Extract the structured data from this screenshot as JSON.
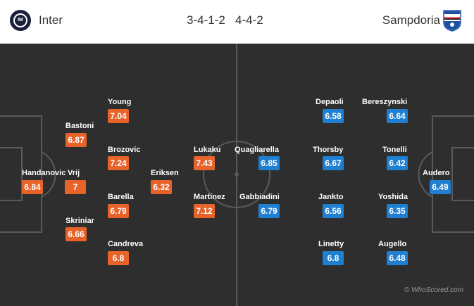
{
  "header": {
    "home_team": "Inter",
    "away_team": "Sampdoria",
    "home_formation": "3-4-1-2",
    "away_formation": "4-4-2",
    "home_crest_text": "IM"
  },
  "colors": {
    "home_rating": "#e8632a",
    "away_rating": "#1f7fd1",
    "pitch": "#2e2e2e",
    "lines": "#5a5a5a"
  },
  "home_players": [
    {
      "name": "Young",
      "rating": "7.04"
    },
    {
      "name": "Bastoni",
      "rating": "6.87"
    },
    {
      "name": "Brozovic",
      "rating": "7.24"
    },
    {
      "name": "Lukaku",
      "rating": "7.43"
    },
    {
      "name": "Eriksen",
      "rating": "6.32"
    },
    {
      "name": "Handanovic",
      "rating": "6.84"
    },
    {
      "name": "Vrij",
      "rating": "7"
    },
    {
      "name": "Barella",
      "rating": "6.79"
    },
    {
      "name": "Martínez",
      "rating": "7.12"
    },
    {
      "name": "Skriniar",
      "rating": "6.66"
    },
    {
      "name": "Candreva",
      "rating": "6.8"
    }
  ],
  "away_players": [
    {
      "name": "Depaoli",
      "rating": "6.58"
    },
    {
      "name": "Bereszynski",
      "rating": "6.64"
    },
    {
      "name": "Quagliarella",
      "rating": "6.85"
    },
    {
      "name": "Thorsby",
      "rating": "6.67"
    },
    {
      "name": "Tonelli",
      "rating": "6.42"
    },
    {
      "name": "Audero",
      "rating": "6.49"
    },
    {
      "name": "Gabbiadini",
      "rating": "6.79"
    },
    {
      "name": "Jankto",
      "rating": "6.56"
    },
    {
      "name": "Yoshida",
      "rating": "6.35"
    },
    {
      "name": "Linetty",
      "rating": "6.8"
    },
    {
      "name": "Augello",
      "rating": "6.48"
    }
  ],
  "watermark": "© WhoScored.com"
}
